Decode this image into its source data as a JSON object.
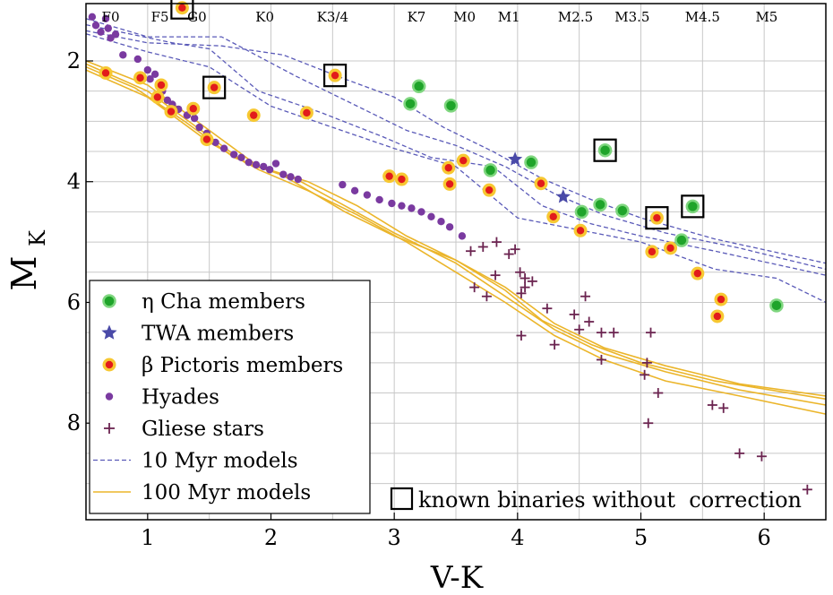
{
  "chart_data": {
    "type": "scatter",
    "title": "",
    "xlabel": "V-K",
    "ylabel_main": "M",
    "ylabel_sub": "K",
    "xlim": [
      0.5,
      6.5
    ],
    "ylim": [
      9.6,
      1.05
    ],
    "y_inverted": true,
    "grid": true,
    "x_ticks": [
      1,
      2,
      3,
      4,
      5,
      6
    ],
    "y_ticks": [
      2,
      4,
      6,
      8
    ],
    "spectral_types": [
      {
        "label": "F0",
        "x": 0.7
      },
      {
        "label": "F5",
        "x": 1.1
      },
      {
        "label": "G0",
        "x": 1.4
      },
      {
        "label": "K0",
        "x": 1.95
      },
      {
        "label": "K3/4",
        "x": 2.5
      },
      {
        "label": "K7",
        "x": 3.18
      },
      {
        "label": "M0",
        "x": 3.57
      },
      {
        "label": "M1",
        "x": 3.93
      },
      {
        "label": "M2.5",
        "x": 4.47
      },
      {
        "label": "M3.5",
        "x": 4.93
      },
      {
        "label": "M4.5",
        "x": 5.5
      },
      {
        "label": "M5",
        "x": 6.02
      }
    ],
    "legend": {
      "position": "bottom-left",
      "entries": [
        {
          "key": "eta_cha",
          "label": "η Cha members"
        },
        {
          "key": "twa",
          "label": "TWA members"
        },
        {
          "key": "beta_pic",
          "label": "β Pictoris members"
        },
        {
          "key": "hyades",
          "label": "Hyades"
        },
        {
          "key": "gliese",
          "label": "Gliese stars"
        },
        {
          "key": "myr10",
          "label": "10 Myr models"
        },
        {
          "key": "myr100",
          "label": "100 Myr models"
        }
      ],
      "binary_note": "known binaries without  correction"
    },
    "colors": {
      "eta_cha_fill": "#1fa42a",
      "eta_cha_edge": "#7fd67f",
      "twa": "#4a4aa8",
      "beta_pic_fill": "#e21b1b",
      "beta_pic_edge": "#f7c832",
      "hyades": "#7a3aa0",
      "gliese": "#6b2450",
      "myr10": "#5a5ab8",
      "myr100": "#ebb52a",
      "grid": "#c8c8c8"
    },
    "series": {
      "eta_cha": [
        [
          3.13,
          2.71
        ],
        [
          3.2,
          2.42
        ],
        [
          3.46,
          2.74
        ],
        [
          3.78,
          3.81
        ],
        [
          4.11,
          3.68
        ],
        [
          4.52,
          4.5
        ],
        [
          4.67,
          4.38
        ],
        [
          4.71,
          3.48
        ],
        [
          4.85,
          4.48
        ],
        [
          5.33,
          4.97
        ],
        [
          5.42,
          4.41
        ],
        [
          6.1,
          6.05
        ]
      ],
      "twa": [
        [
          3.98,
          3.63
        ],
        [
          4.37,
          4.25
        ]
      ],
      "beta_pic": [
        [
          0.66,
          2.2
        ],
        [
          0.94,
          2.28
        ],
        [
          1.08,
          2.6
        ],
        [
          1.11,
          2.4
        ],
        [
          1.19,
          2.84
        ],
        [
          1.28,
          1.12
        ],
        [
          1.37,
          2.79
        ],
        [
          1.48,
          3.3
        ],
        [
          1.54,
          2.44
        ],
        [
          1.86,
          2.9
        ],
        [
          2.29,
          2.86
        ],
        [
          2.52,
          2.24
        ],
        [
          2.96,
          3.91
        ],
        [
          3.06,
          3.96
        ],
        [
          3.44,
          3.77
        ],
        [
          3.45,
          4.04
        ],
        [
          3.56,
          3.65
        ],
        [
          3.77,
          4.14
        ],
        [
          4.19,
          4.03
        ],
        [
          4.29,
          4.58
        ],
        [
          4.51,
          4.81
        ],
        [
          5.09,
          5.16
        ],
        [
          5.13,
          4.6
        ],
        [
          5.24,
          5.1
        ],
        [
          5.46,
          5.52
        ],
        [
          5.62,
          6.23
        ],
        [
          5.65,
          5.95
        ]
      ],
      "hyades": [
        [
          0.55,
          1.27
        ],
        [
          0.58,
          1.41
        ],
        [
          0.62,
          1.52
        ],
        [
          0.66,
          1.3
        ],
        [
          0.68,
          1.46
        ],
        [
          0.7,
          1.62
        ],
        [
          0.74,
          1.56
        ],
        [
          0.8,
          1.9
        ],
        [
          0.92,
          1.97
        ],
        [
          1.0,
          2.15
        ],
        [
          1.02,
          2.3
        ],
        [
          1.06,
          2.22
        ],
        [
          1.1,
          2.38
        ],
        [
          1.12,
          2.5
        ],
        [
          1.16,
          2.65
        ],
        [
          1.2,
          2.72
        ],
        [
          1.25,
          2.8
        ],
        [
          1.32,
          2.9
        ],
        [
          1.38,
          2.95
        ],
        [
          1.42,
          3.1
        ],
        [
          1.48,
          3.2
        ],
        [
          1.55,
          3.35
        ],
        [
          1.62,
          3.45
        ],
        [
          1.7,
          3.55
        ],
        [
          1.76,
          3.6
        ],
        [
          1.82,
          3.68
        ],
        [
          1.88,
          3.72
        ],
        [
          1.94,
          3.75
        ],
        [
          1.99,
          3.8
        ],
        [
          2.04,
          3.7
        ],
        [
          2.1,
          3.88
        ],
        [
          2.16,
          3.92
        ],
        [
          2.22,
          3.96
        ],
        [
          2.58,
          4.05
        ],
        [
          2.68,
          4.15
        ],
        [
          2.78,
          4.22
        ],
        [
          2.88,
          4.3
        ],
        [
          2.98,
          4.36
        ],
        [
          3.06,
          4.4
        ],
        [
          3.14,
          4.44
        ],
        [
          3.22,
          4.5
        ],
        [
          3.3,
          4.58
        ],
        [
          3.38,
          4.66
        ],
        [
          3.45,
          4.75
        ],
        [
          3.55,
          4.9
        ]
      ],
      "gliese": [
        [
          3.62,
          5.15
        ],
        [
          3.72,
          5.08
        ],
        [
          3.83,
          5.0
        ],
        [
          3.93,
          5.2
        ],
        [
          3.98,
          5.12
        ],
        [
          3.65,
          5.75
        ],
        [
          3.75,
          5.9
        ],
        [
          3.82,
          5.55
        ],
        [
          4.02,
          5.5
        ],
        [
          4.06,
          5.6
        ],
        [
          4.12,
          5.65
        ],
        [
          4.06,
          5.75
        ],
        [
          4.03,
          5.85
        ],
        [
          4.24,
          6.1
        ],
        [
          4.3,
          6.7
        ],
        [
          4.46,
          6.2
        ],
        [
          4.5,
          6.45
        ],
        [
          4.58,
          6.32
        ],
        [
          4.68,
          6.5
        ],
        [
          4.78,
          6.5
        ],
        [
          4.55,
          5.9
        ],
        [
          4.03,
          6.55
        ],
        [
          4.68,
          6.95
        ],
        [
          5.08,
          6.5
        ],
        [
          5.05,
          7.0
        ],
        [
          5.03,
          7.2
        ],
        [
          5.14,
          7.5
        ],
        [
          5.06,
          8.0
        ],
        [
          5.58,
          7.7
        ],
        [
          5.67,
          7.75
        ],
        [
          5.8,
          8.5
        ],
        [
          5.98,
          8.55
        ],
        [
          6.35,
          9.1
        ]
      ],
      "binaries": [
        [
          1.28,
          1.12
        ],
        [
          1.54,
          2.44
        ],
        [
          2.52,
          2.24
        ],
        [
          4.71,
          3.48
        ],
        [
          5.13,
          4.6
        ],
        [
          5.42,
          4.41
        ]
      ],
      "myr10_lines": [
        [
          [
            0.5,
            1.5
          ],
          [
            1.0,
            1.7
          ],
          [
            1.6,
            1.75
          ],
          [
            2.1,
            1.9
          ],
          [
            2.6,
            2.3
          ],
          [
            3.0,
            2.6
          ],
          [
            3.4,
            3.1
          ],
          [
            3.8,
            3.5
          ],
          [
            4.2,
            3.95
          ],
          [
            4.6,
            4.3
          ],
          [
            5.0,
            4.6
          ],
          [
            5.6,
            4.95
          ],
          [
            6.5,
            5.35
          ]
        ],
        [
          [
            0.5,
            1.3
          ],
          [
            1.0,
            1.6
          ],
          [
            1.6,
            1.6
          ],
          [
            2.2,
            2.25
          ],
          [
            2.7,
            2.75
          ],
          [
            3.1,
            3.15
          ],
          [
            3.5,
            3.4
          ],
          [
            3.9,
            3.75
          ],
          [
            4.3,
            4.2
          ],
          [
            4.7,
            4.55
          ],
          [
            5.2,
            4.85
          ],
          [
            5.8,
            5.1
          ],
          [
            6.5,
            5.45
          ]
        ],
        [
          [
            0.5,
            1.4
          ],
          [
            1.2,
            1.7
          ],
          [
            1.5,
            1.8
          ],
          [
            1.9,
            2.5
          ],
          [
            2.4,
            2.85
          ],
          [
            2.9,
            3.25
          ],
          [
            3.3,
            3.6
          ],
          [
            3.8,
            3.75
          ],
          [
            4.2,
            4.4
          ],
          [
            4.6,
            4.7
          ],
          [
            5.0,
            4.9
          ],
          [
            5.6,
            5.15
          ],
          [
            6.5,
            5.55
          ]
        ],
        [
          [
            0.5,
            1.55
          ],
          [
            1.0,
            1.85
          ],
          [
            1.5,
            2.1
          ],
          [
            2.0,
            2.75
          ],
          [
            2.5,
            3.1
          ],
          [
            3.0,
            3.45
          ],
          [
            3.5,
            3.75
          ],
          [
            4.0,
            4.6
          ],
          [
            4.5,
            4.8
          ],
          [
            5.0,
            5.0
          ],
          [
            5.6,
            5.45
          ],
          [
            6.1,
            5.6
          ],
          [
            6.5,
            6.0
          ]
        ]
      ],
      "myr100_lines": [
        [
          [
            0.5,
            2.1
          ],
          [
            0.9,
            2.45
          ],
          [
            1.3,
            3.0
          ],
          [
            1.7,
            3.6
          ],
          [
            2.1,
            3.9
          ],
          [
            2.6,
            4.5
          ],
          [
            3.0,
            4.9
          ],
          [
            3.5,
            5.3
          ],
          [
            3.9,
            5.8
          ],
          [
            4.2,
            6.3
          ],
          [
            4.6,
            6.7
          ],
          [
            5.0,
            7.0
          ],
          [
            5.6,
            7.3
          ],
          [
            6.5,
            7.6
          ]
        ],
        [
          [
            0.5,
            2.05
          ],
          [
            1.0,
            2.5
          ],
          [
            1.4,
            3.1
          ],
          [
            1.8,
            3.7
          ],
          [
            2.2,
            3.95
          ],
          [
            2.6,
            4.4
          ],
          [
            3.0,
            4.85
          ],
          [
            3.5,
            5.35
          ],
          [
            3.9,
            5.9
          ],
          [
            4.3,
            6.45
          ],
          [
            4.7,
            6.85
          ],
          [
            5.2,
            7.15
          ],
          [
            5.8,
            7.45
          ],
          [
            6.5,
            7.7
          ]
        ],
        [
          [
            0.5,
            2.15
          ],
          [
            1.0,
            2.6
          ],
          [
            1.5,
            3.35
          ],
          [
            1.9,
            3.8
          ],
          [
            2.3,
            4.15
          ],
          [
            2.7,
            4.55
          ],
          [
            3.1,
            5.0
          ],
          [
            3.5,
            5.5
          ],
          [
            3.9,
            6.0
          ],
          [
            4.3,
            6.55
          ],
          [
            4.7,
            6.95
          ],
          [
            5.2,
            7.3
          ],
          [
            5.8,
            7.55
          ],
          [
            6.5,
            7.85
          ]
        ],
        [
          [
            0.5,
            2.0
          ],
          [
            1.0,
            2.4
          ],
          [
            1.4,
            3.0
          ],
          [
            1.9,
            3.75
          ],
          [
            2.3,
            4.0
          ],
          [
            2.7,
            4.4
          ],
          [
            3.1,
            4.9
          ],
          [
            3.5,
            5.3
          ],
          [
            3.9,
            5.75
          ],
          [
            4.3,
            6.35
          ],
          [
            4.7,
            6.75
          ],
          [
            5.2,
            7.05
          ],
          [
            5.8,
            7.35
          ],
          [
            6.5,
            7.55
          ]
        ]
      ]
    }
  }
}
